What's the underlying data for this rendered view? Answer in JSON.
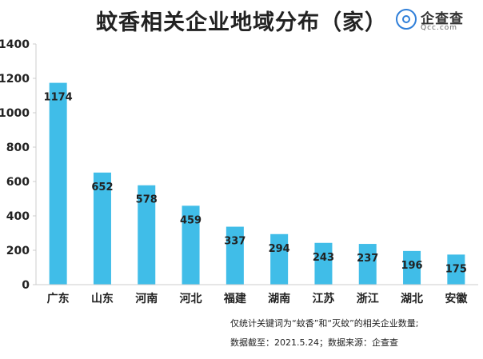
{
  "title": "蚊香相关企业地域分布（家）",
  "brand": {
    "name": "企查查",
    "domain": "Qcc.com"
  },
  "notes": [
    "仅统计关键词为“蚊香”和“灭蚊”的相关企业数量;",
    "数据截至：2021.5.24；数据来源：企查查"
  ],
  "colors": {
    "bar": "#40bde8",
    "axis": "#cccccc",
    "brand": "#2f7fd9"
  },
  "chart_data": {
    "type": "bar",
    "title": "蚊香相关企业地域分布（家）",
    "xlabel": "",
    "ylabel": "",
    "categories": [
      "广东",
      "山东",
      "河南",
      "河北",
      "福建",
      "湖南",
      "江苏",
      "浙江",
      "湖北",
      "安徽"
    ],
    "values": [
      1174,
      652,
      578,
      459,
      337,
      294,
      243,
      237,
      196,
      175
    ],
    "data_labels": [
      "1174",
      "652",
      "578",
      "459",
      "337",
      "294",
      "243",
      "237",
      "196",
      "175"
    ],
    "yticks": [
      0,
      200,
      400,
      600,
      800,
      1000,
      1200,
      1400
    ],
    "ylim": [
      0,
      1400
    ],
    "grid": false,
    "legend": "none"
  }
}
